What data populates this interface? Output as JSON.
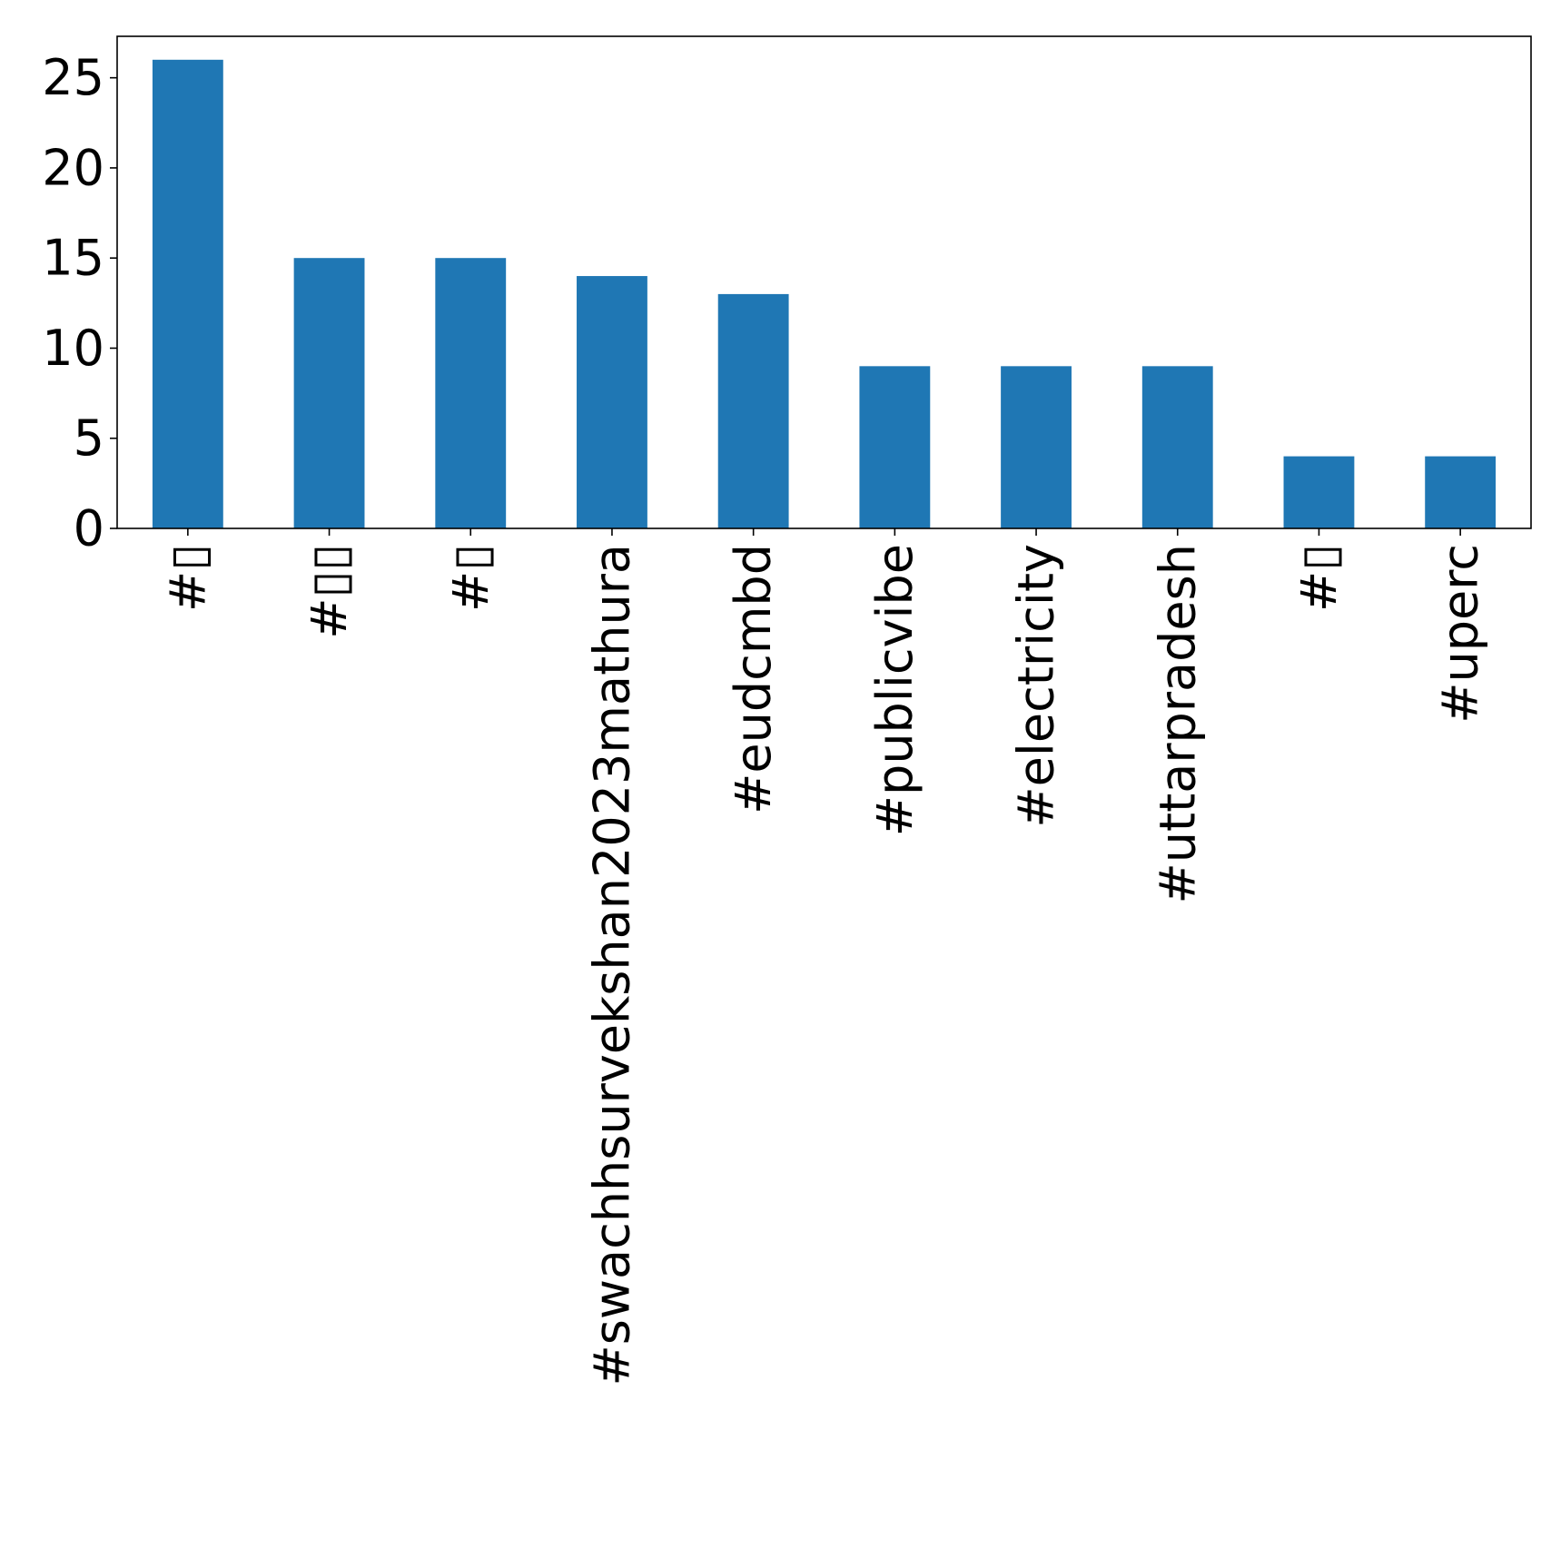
{
  "chart_data": {
    "type": "bar",
    "title": "",
    "xlabel": "",
    "ylabel": "",
    "categories": [
      "#▯",
      "#▯▯",
      "#▯",
      "#swachhsurvekshan2023mathura",
      "#eudcmbd",
      "#publicvibe",
      "#electricity",
      "#uttarpradesh",
      "#▯",
      "#uperc"
    ],
    "values": [
      26,
      15,
      15,
      14,
      13,
      9,
      9,
      9,
      4,
      4
    ],
    "ylim": [
      0,
      27.3
    ],
    "yticks": [
      0,
      5,
      10,
      15,
      20,
      25
    ],
    "bar_color": "#1f77b4",
    "grid": false,
    "legend": "none"
  }
}
